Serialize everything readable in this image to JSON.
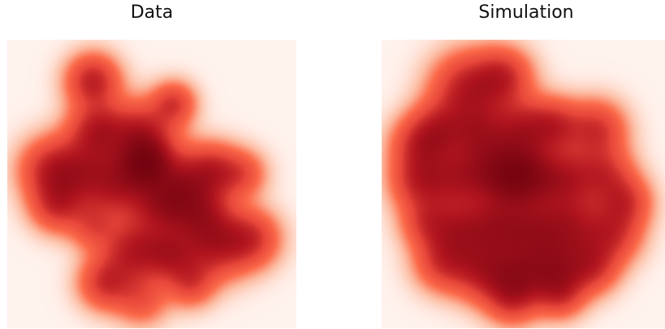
{
  "panels": [
    {
      "title": "Data"
    },
    {
      "title": "Simulation"
    }
  ],
  "colors": {
    "background": "#ffffff",
    "map_low": "#fff3ee",
    "map_mid": "#e8473a",
    "map_high": "#67000d"
  }
}
